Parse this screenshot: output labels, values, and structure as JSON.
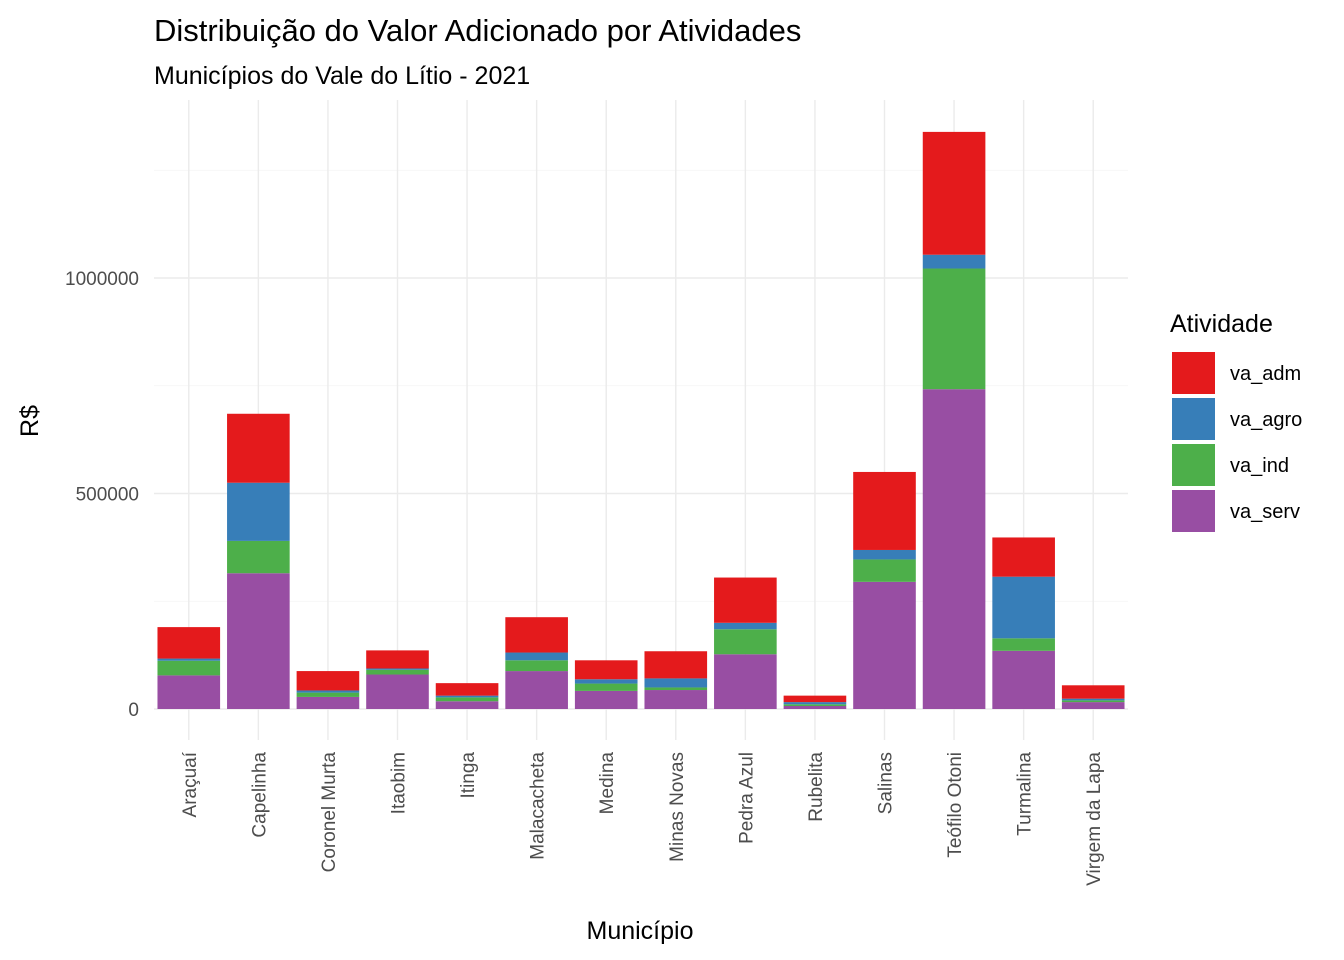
{
  "chart_data": {
    "type": "bar",
    "stacked": true,
    "title": "Distribuição do Valor Adicionado por Atividades",
    "subtitle": "Municípios do Vale do Lítio - 2021",
    "xlabel": "Município",
    "ylabel": "R$",
    "ylim": [
      -30000,
      1400000
    ],
    "yticks": [
      0,
      500000,
      1000000
    ],
    "ytick_labels": [
      "0",
      "500000",
      "1000000"
    ],
    "grid": true,
    "legend_title": "Atividade",
    "legend_position": "right",
    "categories": [
      "Araçuaí",
      "Capelinha",
      "Coronel Murta",
      "Itaobim",
      "Itinga",
      "Malacacheta",
      "Medina",
      "Minas Novas",
      "Pedra Azul",
      "Rubelita",
      "Salinas",
      "Teófilo Otoni",
      "Turmalina",
      "Virgem da Lapa"
    ],
    "series": [
      {
        "name": "va_serv",
        "color": "#984EA3",
        "values": [
          78000,
          315000,
          28000,
          80000,
          18000,
          88000,
          42000,
          44000,
          127000,
          7000,
          295000,
          742000,
          135000,
          16000
        ]
      },
      {
        "name": "va_ind",
        "color": "#4DAF4A",
        "values": [
          34000,
          75000,
          10000,
          11000,
          9000,
          25000,
          17000,
          6000,
          58000,
          4000,
          52000,
          280000,
          29000,
          4000
        ]
      },
      {
        "name": "va_agro",
        "color": "#377EB8",
        "values": [
          5000,
          135000,
          5000,
          3000,
          4000,
          18000,
          10000,
          21000,
          15000,
          5000,
          22000,
          32000,
          143000,
          4000
        ]
      },
      {
        "name": "va_adm",
        "color": "#E41A1C",
        "values": [
          73000,
          160000,
          45000,
          42000,
          29000,
          82000,
          44000,
          63000,
          105000,
          15000,
          181000,
          285000,
          91000,
          31000
        ]
      }
    ],
    "legend_order": [
      "va_adm",
      "va_agro",
      "va_ind",
      "va_serv"
    ]
  }
}
